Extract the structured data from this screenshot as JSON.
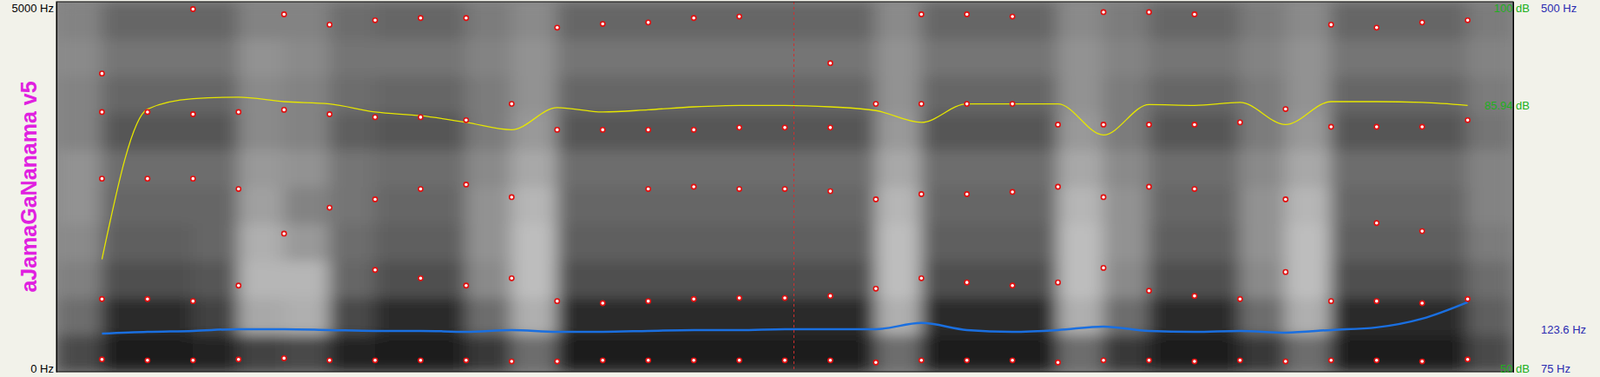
{
  "chart_data": {
    "type": "spectrogram",
    "title": "aJamaGaNanama v5",
    "x": [
      0.05,
      0.1,
      0.15,
      0.2,
      0.25,
      0.3,
      0.35,
      0.4,
      0.45,
      0.5,
      0.55,
      0.6,
      0.65,
      0.7,
      0.75,
      0.8,
      0.85,
      0.9,
      0.95,
      1.0,
      1.05,
      1.1,
      1.15,
      1.2,
      1.25,
      1.3,
      1.35,
      1.4,
      1.45,
      1.5,
      1.55
    ],
    "xlim": [
      0,
      1.6
    ],
    "ylim": [
      0,
      5000
    ],
    "yticks": [
      {
        "value": 0,
        "label": "0 Hz"
      },
      {
        "value": 5000,
        "label": "5000 Hz"
      }
    ],
    "y2lim": [
      75,
      500
    ],
    "y2ticks": [
      {
        "value": 75,
        "label": "75 Hz"
      },
      {
        "value": 123.6,
        "label": "123.6 Hz"
      },
      {
        "value": 500,
        "label": "500 Hz"
      }
    ],
    "y3lim": [
      50,
      100
    ],
    "y3ticks": [
      {
        "value": 50,
        "label": "50 dB"
      },
      {
        "value": 85.94,
        "label": "85.94 dB"
      },
      {
        "value": 100,
        "label": "100 dB"
      }
    ],
    "cursor": 0.81,
    "spectrogram": {
      "times": [
        0,
        0.05,
        0.1,
        0.15,
        0.2,
        0.25,
        0.3,
        0.35,
        0.4,
        0.45,
        0.5,
        0.55,
        0.6,
        0.65,
        0.7,
        0.75,
        0.8,
        0.85,
        0.9,
        0.95,
        1.0,
        1.05,
        1.1,
        1.15,
        1.2,
        1.25,
        1.3,
        1.35,
        1.4,
        1.45,
        1.5,
        1.55,
        1.6
      ],
      "freqs": [
        0,
        500,
        1000,
        1500,
        2000,
        2500,
        3000,
        3500,
        4000,
        4500,
        5000
      ],
      "zlim": [
        0,
        70
      ],
      "values": [
        [
          50,
          40,
          35,
          32,
          30,
          30,
          34,
          34,
          32,
          34
        ],
        [
          62,
          58,
          48,
          44,
          42,
          40,
          46,
          42,
          38,
          42
        ],
        [
          62,
          58,
          48,
          44,
          42,
          40,
          46,
          42,
          38,
          42
        ],
        [
          60,
          52,
          46,
          42,
          42,
          40,
          46,
          42,
          38,
          42
        ],
        [
          52,
          24,
          20,
          22,
          26,
          28,
          32,
          32,
          30,
          34
        ],
        [
          50,
          22,
          20,
          28,
          34,
          30,
          34,
          34,
          32,
          34
        ],
        [
          60,
          50,
          42,
          40,
          38,
          38,
          44,
          40,
          38,
          40
        ],
        [
          62,
          58,
          48,
          44,
          42,
          40,
          46,
          42,
          38,
          42
        ],
        [
          62,
          58,
          48,
          44,
          42,
          40,
          46,
          42,
          38,
          42
        ],
        [
          55,
          40,
          32,
          30,
          30,
          32,
          36,
          36,
          34,
          36
        ],
        [
          40,
          22,
          18,
          18,
          20,
          24,
          28,
          30,
          30,
          32
        ],
        [
          62,
          58,
          48,
          44,
          42,
          40,
          46,
          42,
          38,
          42
        ],
        [
          62,
          58,
          48,
          44,
          42,
          40,
          46,
          42,
          38,
          42
        ],
        [
          62,
          58,
          48,
          44,
          42,
          40,
          46,
          42,
          38,
          42
        ],
        [
          62,
          58,
          48,
          44,
          42,
          40,
          46,
          42,
          38,
          42
        ],
        [
          62,
          58,
          48,
          44,
          42,
          40,
          46,
          42,
          38,
          42
        ],
        [
          62,
          58,
          48,
          44,
          42,
          40,
          46,
          42,
          38,
          42
        ],
        [
          62,
          58,
          48,
          44,
          42,
          40,
          46,
          42,
          38,
          42
        ],
        [
          40,
          22,
          18,
          18,
          20,
          24,
          28,
          30,
          30,
          32
        ],
        [
          62,
          58,
          48,
          44,
          42,
          40,
          46,
          42,
          38,
          42
        ],
        [
          62,
          58,
          48,
          44,
          42,
          40,
          46,
          42,
          38,
          42
        ],
        [
          62,
          58,
          48,
          44,
          42,
          40,
          46,
          42,
          38,
          42
        ],
        [
          40,
          22,
          18,
          18,
          20,
          24,
          28,
          30,
          30,
          32
        ],
        [
          55,
          40,
          32,
          30,
          30,
          32,
          36,
          36,
          34,
          36
        ],
        [
          62,
          58,
          48,
          44,
          42,
          40,
          46,
          42,
          38,
          42
        ],
        [
          62,
          58,
          48,
          44,
          42,
          40,
          46,
          42,
          38,
          42
        ],
        [
          55,
          40,
          32,
          30,
          30,
          32,
          36,
          36,
          34,
          36
        ],
        [
          40,
          22,
          18,
          18,
          20,
          24,
          28,
          30,
          30,
          32
        ],
        [
          62,
          58,
          48,
          44,
          42,
          40,
          46,
          42,
          38,
          42
        ],
        [
          62,
          58,
          48,
          44,
          42,
          40,
          46,
          42,
          38,
          42
        ],
        [
          62,
          58,
          48,
          44,
          42,
          40,
          46,
          42,
          38,
          42
        ],
        [
          50,
          44,
          40,
          36,
          34,
          34,
          38,
          36,
          34,
          36
        ]
      ]
    },
    "series": [
      {
        "type": "scatter",
        "marker": "circle",
        "color": "#e01010",
        "values": [
          168,
          155,
          155,
          168,
          183,
          155,
          155,
          155,
          155,
          140,
          140,
          155,
          155,
          155,
          155,
          155,
          155,
          126,
          155,
          155,
          155,
          126,
          155,
          155,
          140,
          155,
          140,
          155,
          155,
          140,
          168
        ]
      },
      {
        "type": "scatter",
        "marker": "circle",
        "color": "#e01010",
        "values": [
          983,
          983,
          955,
          1165,
          1867,
          2218,
          1376,
          1264,
          1165,
          1264,
          955,
          927,
          955,
          983,
          997,
          997,
          1025,
          1123,
          1264,
          1207,
          1165,
          1207,
          1404,
          1095,
          1025,
          983,
          1348,
          955,
          955,
          927,
          983
        ]
      },
      {
        "type": "scatter",
        "marker": "circle",
        "color": "#e01010",
        "values": [
          2610,
          2610,
          2610,
          2470,
          null,
          null,
          2330,
          2470,
          2530,
          2360,
          null,
          null,
          2470,
          2500,
          2470,
          2470,
          2440,
          2330,
          2400,
          2400,
          2430,
          2500,
          2360,
          2500,
          2470,
          null,
          2330,
          null,
          2010,
          1900,
          null
        ]
      },
      {
        "type": "scatter",
        "marker": "circle",
        "color": "#e01010",
        "values": [
          3510,
          3510,
          3480,
          3510,
          3540,
          3480,
          3440,
          3440,
          3400,
          3620,
          3270,
          3270,
          3270,
          3270,
          3300,
          3300,
          3300,
          3620,
          3620,
          3620,
          3620,
          3340,
          3340,
          3340,
          3340,
          3370,
          3550,
          3310,
          3310,
          3310,
          3400
        ]
      },
      {
        "type": "scatter",
        "marker": "circle",
        "color": "#e01010",
        "values": [
          4030,
          null,
          4900,
          null,
          4830,
          4690,
          4750,
          4780,
          4780,
          null,
          4650,
          4700,
          4720,
          4780,
          4800,
          null,
          4170,
          null,
          4830,
          4830,
          4800,
          null,
          4860,
          4860,
          4830,
          null,
          null,
          4690,
          4650,
          4720,
          4750
        ]
      },
      {
        "type": "line",
        "axis": "y2",
        "color": "#1a6fe0",
        "values": [
          119,
          121,
          122,
          124,
          124,
          123,
          122,
          122,
          121,
          123,
          121,
          121,
          122,
          123,
          123,
          124,
          124,
          124,
          131,
          123,
          121,
          123,
          127,
          122,
          121,
          122,
          120,
          123,
          126,
          136,
          155
        ]
      },
      {
        "type": "line",
        "axis": "y3",
        "color": "#e6e600",
        "values": [
          65.2,
          85.5,
          86.9,
          87.1,
          86.5,
          86.2,
          85.1,
          84.6,
          83.7,
          82.7,
          85.7,
          85.1,
          85.4,
          85.8,
          86.0,
          86.0,
          85.8,
          85.3,
          83.7,
          86.2,
          86.2,
          86.2,
          82.0,
          86.1,
          86.0,
          86.4,
          83.4,
          86.5,
          86.5,
          86.4,
          86.0
        ]
      }
    ]
  }
}
